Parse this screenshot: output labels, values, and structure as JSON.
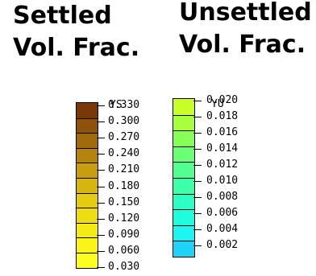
{
  "headings": {
    "settled": [
      "Settled",
      "Vol. Frac."
    ],
    "unsettled": [
      "Unsettled",
      "Vol. Frac."
    ]
  },
  "ys_legend": {
    "var": "YS",
    "labels": [
      "0.330",
      "0.300",
      "0.270",
      "0.240",
      "0.210",
      "0.180",
      "0.150",
      "0.120",
      "0.090",
      "0.060",
      "0.030"
    ],
    "colors": [
      "#7a3808",
      "#8e520a",
      "#a16a0c",
      "#b5840e",
      "#c89e10",
      "#d6b511",
      "#e4cc12",
      "#eedd13",
      "#f5ea14",
      "#faf418",
      "#fdfd20"
    ]
  },
  "yu_legend": {
    "var": "YU",
    "labels": [
      "0.020",
      "0.018",
      "0.016",
      "0.014",
      "0.012",
      "0.010",
      "0.008",
      "0.006",
      "0.004",
      "0.002"
    ],
    "colors": [
      "#c8ff26",
      "#a8ff3e",
      "#88ff58",
      "#6aff74",
      "#52ff90",
      "#3effaa",
      "#2effc4",
      "#1efedd",
      "#1ef4f0",
      "#20d2f8"
    ]
  }
}
